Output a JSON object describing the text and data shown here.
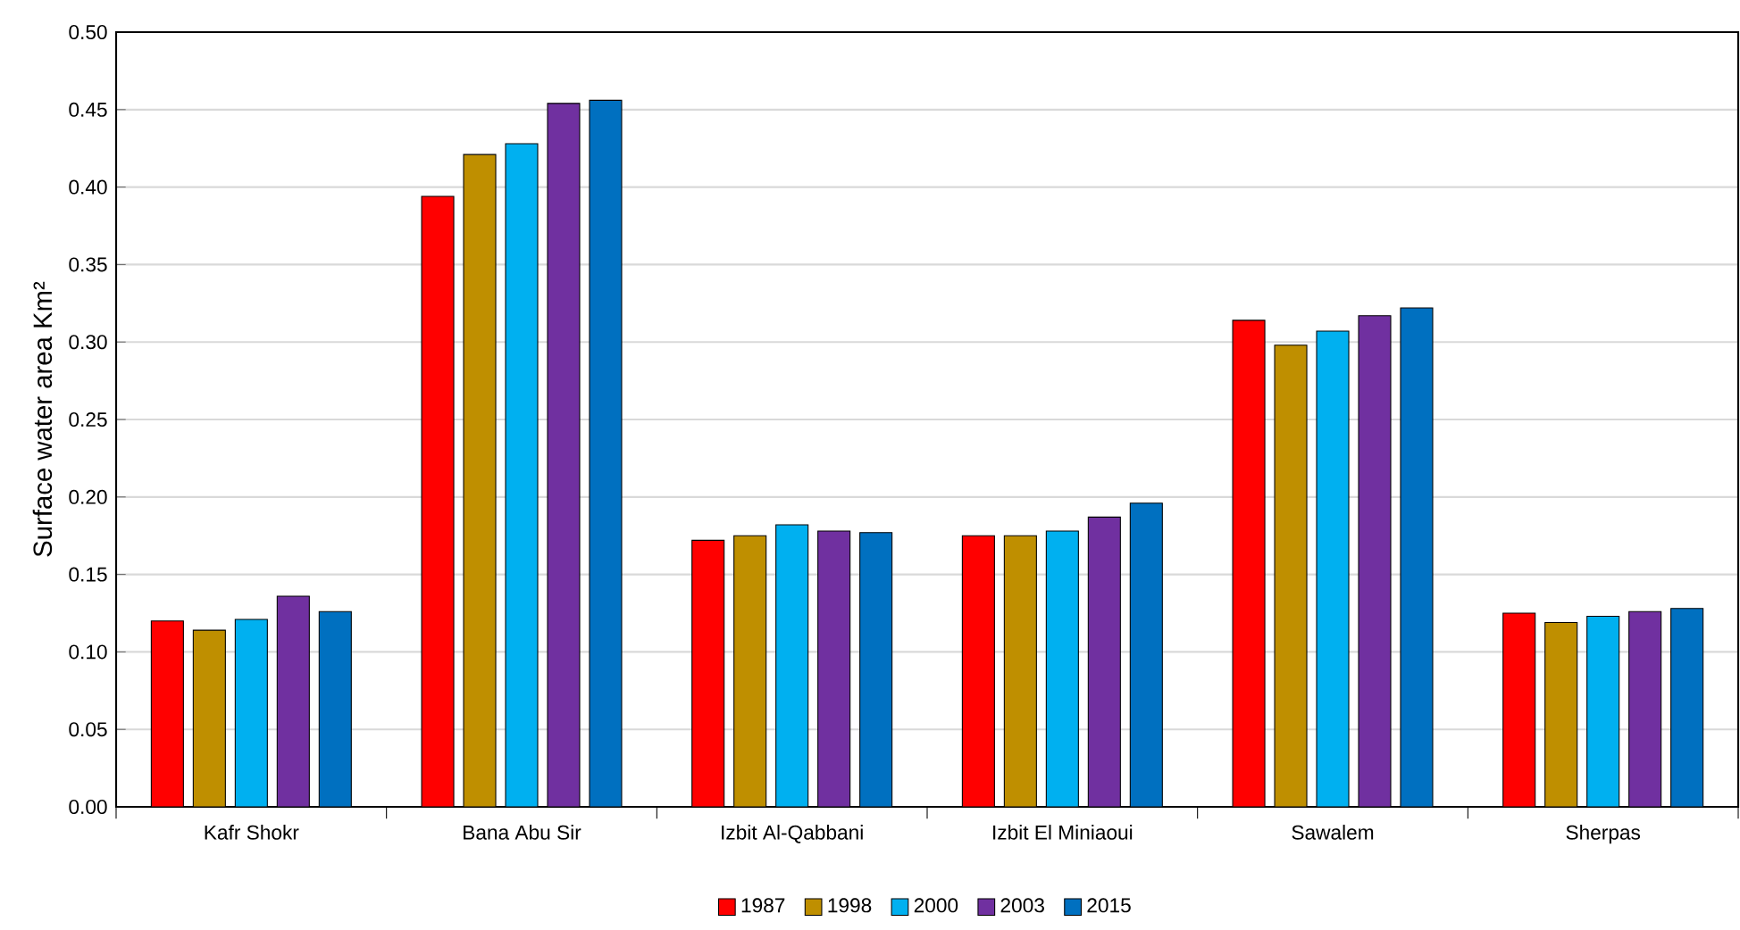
{
  "chart_data": {
    "type": "bar",
    "ylabel": "Surface water area Km²",
    "categories": [
      "Kafr Shokr",
      "Bana Abu Sir",
      "Izbit Al-Qabbani",
      "Izbit El Miniaoui",
      "Sawalem",
      "Sherpas"
    ],
    "series": [
      {
        "name": "1987",
        "color": "#ff0000",
        "values": [
          0.12,
          0.394,
          0.172,
          0.175,
          0.314,
          0.125
        ]
      },
      {
        "name": "1998",
        "color": "#bf8f00",
        "values": [
          0.114,
          0.421,
          0.175,
          0.175,
          0.298,
          0.119
        ]
      },
      {
        "name": "2000",
        "color": "#00b0f0",
        "values": [
          0.121,
          0.428,
          0.182,
          0.178,
          0.307,
          0.123
        ]
      },
      {
        "name": "2003",
        "color": "#7030a0",
        "values": [
          0.136,
          0.454,
          0.178,
          0.187,
          0.317,
          0.126
        ]
      },
      {
        "name": "2015",
        "color": "#0070c0",
        "values": [
          0.126,
          0.456,
          0.177,
          0.196,
          0.322,
          0.128
        ]
      }
    ],
    "ylim": [
      0,
      0.5
    ],
    "yticks": [
      {
        "value": 0,
        "label": "0.00"
      },
      {
        "value": 0.05,
        "label": "0.05"
      },
      {
        "value": 0.1,
        "label": "0.10"
      },
      {
        "value": 0.15,
        "label": "0.15"
      },
      {
        "value": 0.2,
        "label": "0.20"
      },
      {
        "value": 0.25,
        "label": "0.25"
      },
      {
        "value": 0.3,
        "label": "0.30"
      },
      {
        "value": 0.35,
        "label": "0.35"
      },
      {
        "value": 0.4,
        "label": "0.40"
      },
      {
        "value": 0.45,
        "label": "0.45"
      },
      {
        "value": 0.5,
        "label": "0.50"
      }
    ],
    "grid": "y",
    "legend": "bottom"
  }
}
